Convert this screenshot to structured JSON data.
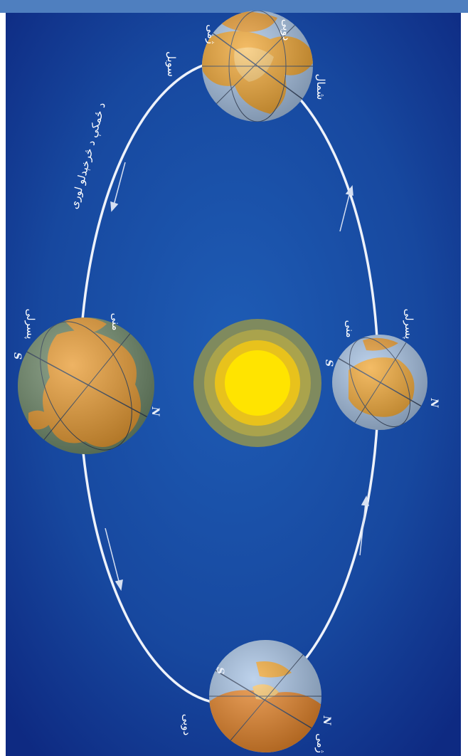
{
  "colors": {
    "top_bar": "#4f7fbf",
    "space_dark": "#102f8c",
    "space_mid": "#1c57b0",
    "orbit": "#e9eef8",
    "sun_core": "#ffe000",
    "land": "#f0a030",
    "ocean": "#9fbfe6"
  },
  "labels": {
    "orbit_caption": "د ځمکې د څرخېدلو لوری",
    "top": {
      "north": "شمال",
      "winter_a": "ژمی",
      "summer_a": "دوبی",
      "summer_b": "سوبل"
    },
    "left": {
      "spring": "پسرلی",
      "autumn": "منی",
      "north_letter": "N",
      "south_letter": "S"
    },
    "right": {
      "spring": "پسرلی",
      "autumn": "منی",
      "north_letter": "N",
      "south_letter": "S"
    },
    "bottom": {
      "summer": "دوبی",
      "winter": "ژمی",
      "north_letter": "N",
      "south_letter": "S"
    }
  }
}
